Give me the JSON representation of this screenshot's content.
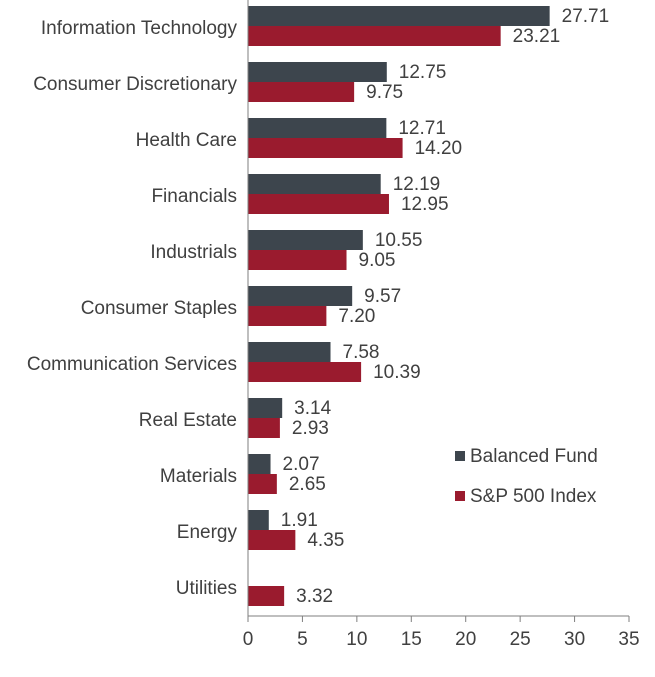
{
  "chart_data": {
    "type": "bar",
    "orientation": "horizontal",
    "title": "",
    "xlabel": "",
    "ylabel": "",
    "xlim": [
      0,
      35
    ],
    "xticks": [
      "0",
      "5",
      "10",
      "15",
      "20",
      "25",
      "30",
      "35"
    ],
    "legend_position": "right-middle",
    "grid": false,
    "categories": [
      "Information Technology",
      "Consumer Discretionary",
      "Health Care",
      "Financials",
      "Industrials",
      "Consumer Staples",
      "Communication Services",
      "Real Estate",
      "Materials",
      "Energy",
      "Utilities"
    ],
    "series": [
      {
        "name": "Balanced Fund",
        "color": "#3d454d",
        "values": [
          27.71,
          12.75,
          12.71,
          12.19,
          10.55,
          9.57,
          7.58,
          3.14,
          2.07,
          1.91,
          null
        ],
        "labels": [
          "27.71",
          "12.75",
          "12.71",
          "12.19",
          "10.55",
          "9.57",
          "7.58",
          "3.14",
          "2.07",
          "1.91",
          ""
        ]
      },
      {
        "name": "S&P 500 Index",
        "color": "#9a1b2e",
        "values": [
          23.21,
          9.75,
          14.2,
          12.95,
          9.05,
          7.2,
          10.39,
          2.93,
          2.65,
          4.35,
          3.32
        ],
        "labels": [
          "23.21",
          "9.75",
          "14.20",
          "12.95",
          "9.05",
          "7.20",
          "10.39",
          "2.93",
          "2.65",
          "4.35",
          "3.32"
        ]
      }
    ]
  }
}
